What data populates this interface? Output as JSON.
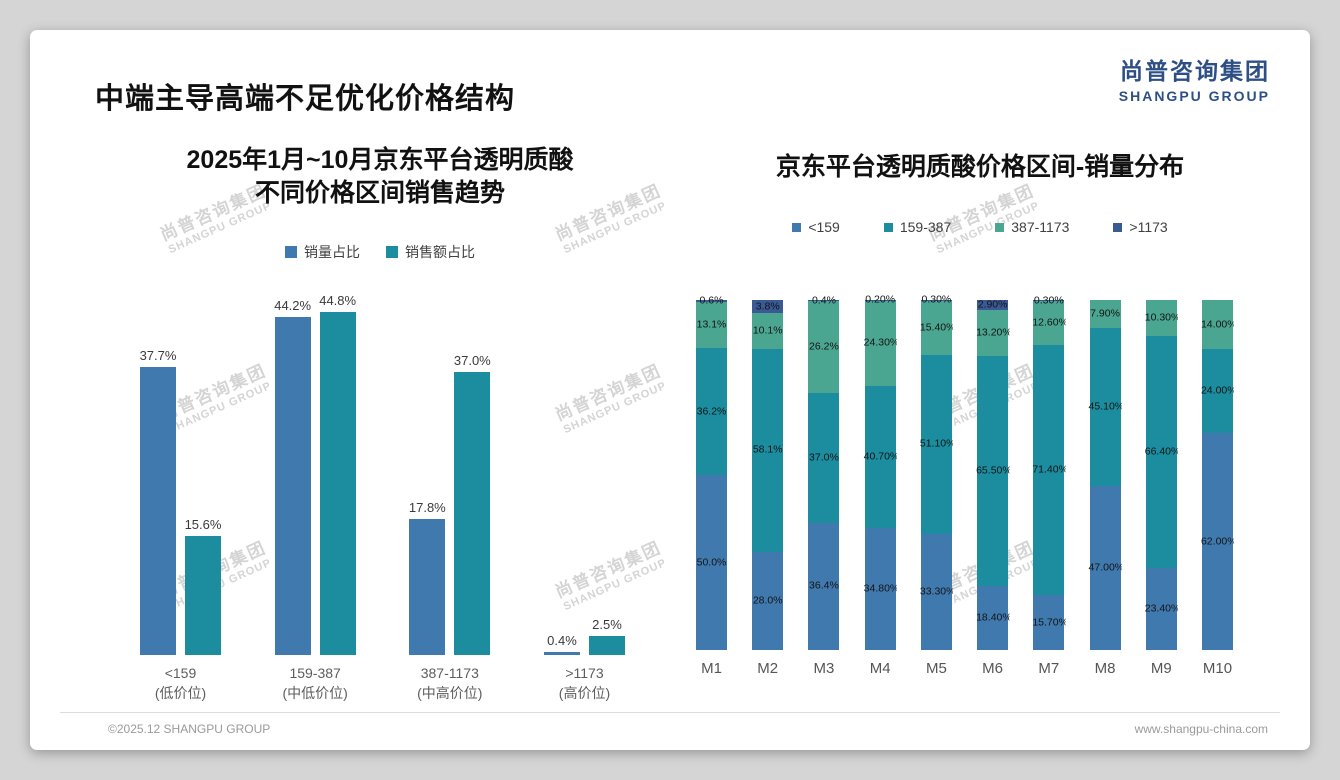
{
  "header": {
    "title": "中端主导高端不足优化价格结构",
    "logo": {
      "cn": "尚普咨询集团",
      "en": "SHANGPU GROUP"
    }
  },
  "watermark": {
    "cn": "尚普咨询集团",
    "en": "SHANGPU GROUP"
  },
  "footer": {
    "left": "©2025.12 SHANGPU GROUP",
    "right": "www.shangpu-china.com"
  },
  "chart_data": [
    {
      "type": "bar",
      "title": "2025年1月~10月京东平台透明质酸 不同价格区间销售趋势",
      "title_lines": [
        "2025年1月~10月京东平台透明质酸",
        "不同价格区间销售趋势"
      ],
      "legend_position": "top",
      "grid": false,
      "ylim": [
        0,
        50
      ],
      "categories": [
        [
          "<159",
          "(低价位)"
        ],
        [
          "159-387",
          "(中低价位)"
        ],
        [
          "387-1173",
          "(中高价位)"
        ],
        [
          ">1173",
          "(高价位)"
        ]
      ],
      "series": [
        {
          "name": "销量占比",
          "color": "#4079ae",
          "values": [
            37.7,
            44.2,
            17.8,
            0.4
          ],
          "labels": [
            "37.7%",
            "44.2%",
            "17.8%",
            "0.4%"
          ]
        },
        {
          "name": "销售额占比",
          "color": "#1b8d9f",
          "values": [
            15.6,
            44.8,
            37.0,
            2.5
          ],
          "labels": [
            "15.6%",
            "44.8%",
            "37.0%",
            "2.5%"
          ]
        }
      ]
    },
    {
      "type": "stacked-bar",
      "title": "京东平台透明质酸价格区间-销量分布",
      "legend_position": "top",
      "grid": false,
      "ylim": [
        0,
        100
      ],
      "categories": [
        "M1",
        "M2",
        "M3",
        "M4",
        "M5",
        "M6",
        "M7",
        "M8",
        "M9",
        "M10"
      ],
      "series": [
        {
          "name": "<159",
          "color": "#4079ae",
          "values": [
            50.0,
            28.0,
            36.4,
            34.8,
            33.3,
            18.4,
            15.7,
            47.0,
            23.4,
            62.0
          ],
          "labels": [
            "50.0%",
            "28.0%",
            "36.4%",
            "34.80%",
            "33.30%",
            "18.40%",
            "15.70%",
            "47.00%",
            "23.40%",
            "62.00%"
          ]
        },
        {
          "name": "159-387",
          "color": "#1b8d9f",
          "values": [
            36.2,
            58.1,
            37.0,
            40.7,
            51.1,
            65.5,
            71.4,
            45.1,
            66.4,
            24.0
          ],
          "labels": [
            "36.2%",
            "58.1%",
            "37.0%",
            "40.70%",
            "51.10%",
            "65.50%",
            "71.40%",
            "45.10%",
            "66.40%",
            "24.00%"
          ]
        },
        {
          "name": "387-1173",
          "color": "#4ba691",
          "values": [
            13.1,
            10.1,
            26.2,
            24.3,
            15.4,
            13.2,
            12.6,
            7.9,
            10.3,
            14.0
          ],
          "labels": [
            "13.1%",
            "10.1%",
            "26.2%",
            "24.30%",
            "15.40%",
            "13.20%",
            "12.60%",
            "7.90%",
            "10.30%",
            "14.00%"
          ]
        },
        {
          "name": ">1173",
          "color": "#3a5a96",
          "values": [
            0.6,
            3.8,
            0.4,
            0.2,
            0.3,
            2.9,
            0.3,
            0,
            0,
            0
          ],
          "labels": [
            "0.6%",
            "3.8%",
            "0.4%",
            "0.20%",
            "0.30%",
            "2.90%",
            "0.30%",
            "",
            "",
            ""
          ]
        }
      ]
    }
  ]
}
